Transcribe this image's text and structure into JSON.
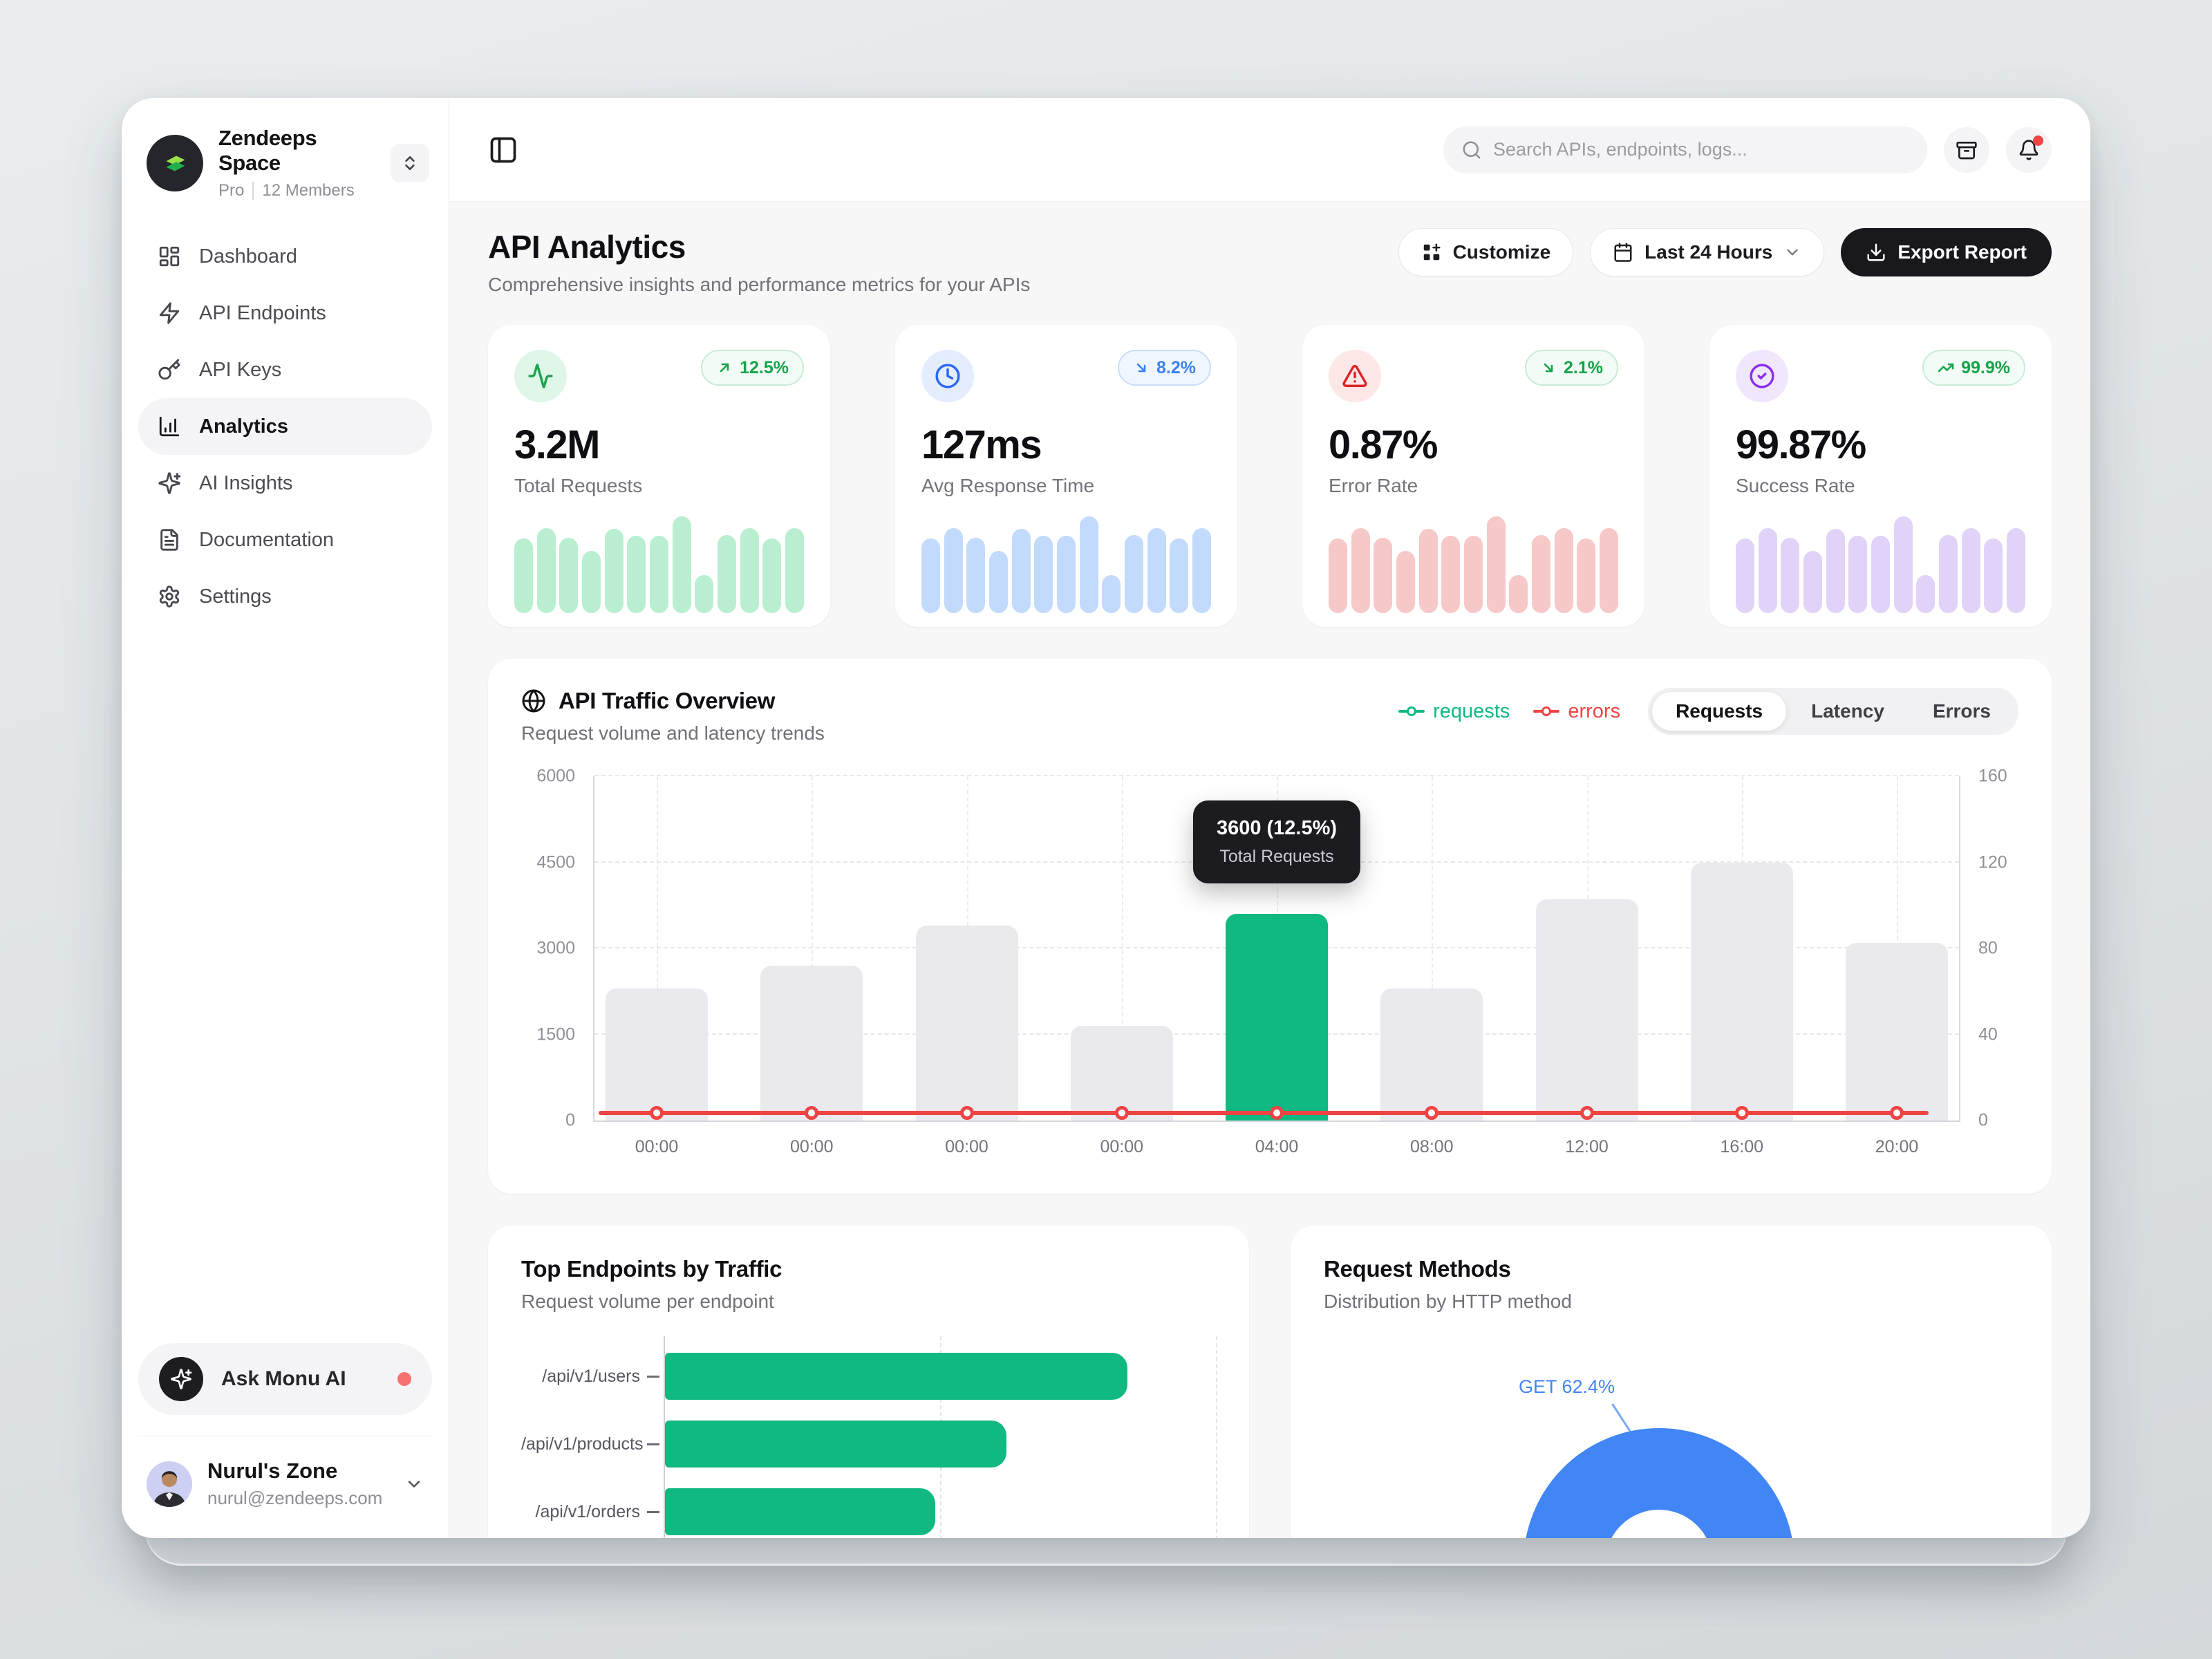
{
  "app": {
    "workspace": {
      "name": "Zendeeps Space",
      "plan": "Pro",
      "members": "12 Members"
    },
    "user": {
      "name": "Nurul's Zone",
      "email": "nurul@zendeeps.com"
    },
    "ai_assistant": {
      "label": "Ask Monu AI"
    }
  },
  "sidebar": {
    "items": [
      {
        "label": "Dashboard",
        "icon": "dashboard-icon",
        "active": false
      },
      {
        "label": "API Endpoints",
        "icon": "zap-icon",
        "active": false
      },
      {
        "label": "API Keys",
        "icon": "key-icon",
        "active": false
      },
      {
        "label": "Analytics",
        "icon": "chart-column-icon",
        "active": true
      },
      {
        "label": "AI Insights",
        "icon": "sparkles-icon",
        "active": false
      },
      {
        "label": "Documentation",
        "icon": "file-text-icon",
        "active": false
      },
      {
        "label": "Settings",
        "icon": "settings-icon",
        "active": false
      }
    ]
  },
  "topbar": {
    "search_placeholder": "Search APIs, endpoints, logs..."
  },
  "page": {
    "title": "API Analytics",
    "subtitle": "Comprehensive insights and performance metrics for your APIs",
    "actions": {
      "customize": "Customize",
      "date_range": "Last 24 Hours",
      "export": "Export Report"
    }
  },
  "stats": [
    {
      "value": "3.2M",
      "label": "Total Requests",
      "icon": "activity-icon",
      "icon_bg": "#e0f6e9",
      "icon_color": "#1ca34e",
      "bar_color": "#b9efd0",
      "badge": {
        "text": "12.5%",
        "direction": "up",
        "icon": "arrow-up-right-icon",
        "color": "#17a34a",
        "bg": "#f2fbf5",
        "border": "#c8ecd5"
      }
    },
    {
      "value": "127ms",
      "label": "Avg Response Time",
      "icon": "clock-icon",
      "icon_bg": "#e4edfd",
      "icon_color": "#2a68f6",
      "bar_color": "#c2dafc",
      "badge": {
        "text": "8.2%",
        "direction": "down",
        "icon": "arrow-down-right-icon",
        "color": "#3b82f6",
        "bg": "#f0f6ff",
        "border": "#c8ddfb"
      }
    },
    {
      "value": "0.87%",
      "label": "Error Rate",
      "icon": "alert-triangle-icon",
      "icon_bg": "#fde7e7",
      "icon_color": "#dc2626",
      "bar_color": "#f7c8c8",
      "badge": {
        "text": "2.1%",
        "direction": "down",
        "icon": "arrow-down-right-icon",
        "color": "#17a34a",
        "bg": "#f2fbf5",
        "border": "#c8ecd5"
      }
    },
    {
      "value": "99.87%",
      "label": "Success Rate",
      "icon": "circle-check-icon",
      "icon_bg": "#f1e7fd",
      "icon_color": "#8b30ee",
      "bar_color": "#e1d3f8",
      "badge": {
        "text": "99.9%",
        "direction": "up",
        "icon": "trending-up-icon",
        "color": "#17a34a",
        "bg": "#f2fbf5",
        "border": "#c8ecd5"
      }
    }
  ],
  "traffic": {
    "title": "API Traffic Overview",
    "subtitle": "Request volume and latency trends",
    "legend": [
      {
        "label": "requests",
        "color": "#10b981"
      },
      {
        "label": "errors",
        "color": "#ef4444"
      }
    ],
    "tabs": [
      {
        "label": "Requests",
        "active": true
      },
      {
        "label": "Latency",
        "active": false
      },
      {
        "label": "Errors",
        "active": false
      }
    ],
    "tooltip": {
      "value": "3600 (12.5%)",
      "label": "Total Requests"
    }
  },
  "endpoints": {
    "title": "Top Endpoints by Traffic",
    "subtitle": "Request volume per endpoint"
  },
  "methods": {
    "title": "Request Methods",
    "subtitle": "Distribution by HTTP method",
    "callout": "GET 62.4%"
  },
  "chart_data": [
    {
      "id": "api-traffic-overview",
      "type": "bar",
      "title": "API Traffic Overview",
      "categories": [
        "00:00",
        "00:00",
        "00:00",
        "00:00",
        "04:00",
        "08:00",
        "12:00",
        "16:00",
        "20:00"
      ],
      "series": [
        {
          "name": "requests",
          "type": "bar",
          "values": [
            2300,
            2700,
            3400,
            1650,
            3600,
            2300,
            3850,
            4500,
            3100
          ],
          "highlight_index": 4,
          "color_default": "#e9e9ee",
          "color_highlight": "#10b981",
          "axis": "left"
        },
        {
          "name": "errors",
          "type": "line",
          "values": [
            2,
            2,
            2,
            2,
            2,
            2,
            2,
            2,
            2
          ],
          "color": "#ef4444",
          "axis": "right"
        }
      ],
      "y_left": {
        "min": 0,
        "max": 6000,
        "ticks": [
          0,
          1500,
          3000,
          4500,
          6000
        ]
      },
      "y_right": {
        "min": 0,
        "max": 160,
        "ticks": [
          0,
          40,
          80,
          120,
          160
        ]
      },
      "grid": "dashed",
      "legend_position": "top-right",
      "tooltip": {
        "category": "04:00",
        "value": 3600,
        "text": "3600 (12.5%)",
        "label": "Total Requests"
      }
    },
    {
      "id": "stat-card-sparklines",
      "type": "bar",
      "description": "Mini bar pattern repeated in each of the four stat cards (relative heights, % of max)",
      "values": [
        77,
        88,
        78,
        64,
        87,
        80,
        80,
        100,
        39,
        81,
        88,
        77,
        88
      ]
    },
    {
      "id": "top-endpoints-by-traffic",
      "type": "bar",
      "orientation": "horizontal",
      "categories": [
        "/api/v1/users",
        "/api/v1/products",
        "/api/v1/orders"
      ],
      "values_pct_of_axis": [
        84,
        62,
        49
      ],
      "color": "#10b981",
      "grid": "dashed"
    },
    {
      "id": "request-methods",
      "type": "pie",
      "donut": true,
      "slices": [
        {
          "label": "GET",
          "value": 62.4,
          "color": "#4285f4"
        }
      ],
      "note": "only top arc of donut visible in viewport; GET 62.4% labeled"
    }
  ]
}
